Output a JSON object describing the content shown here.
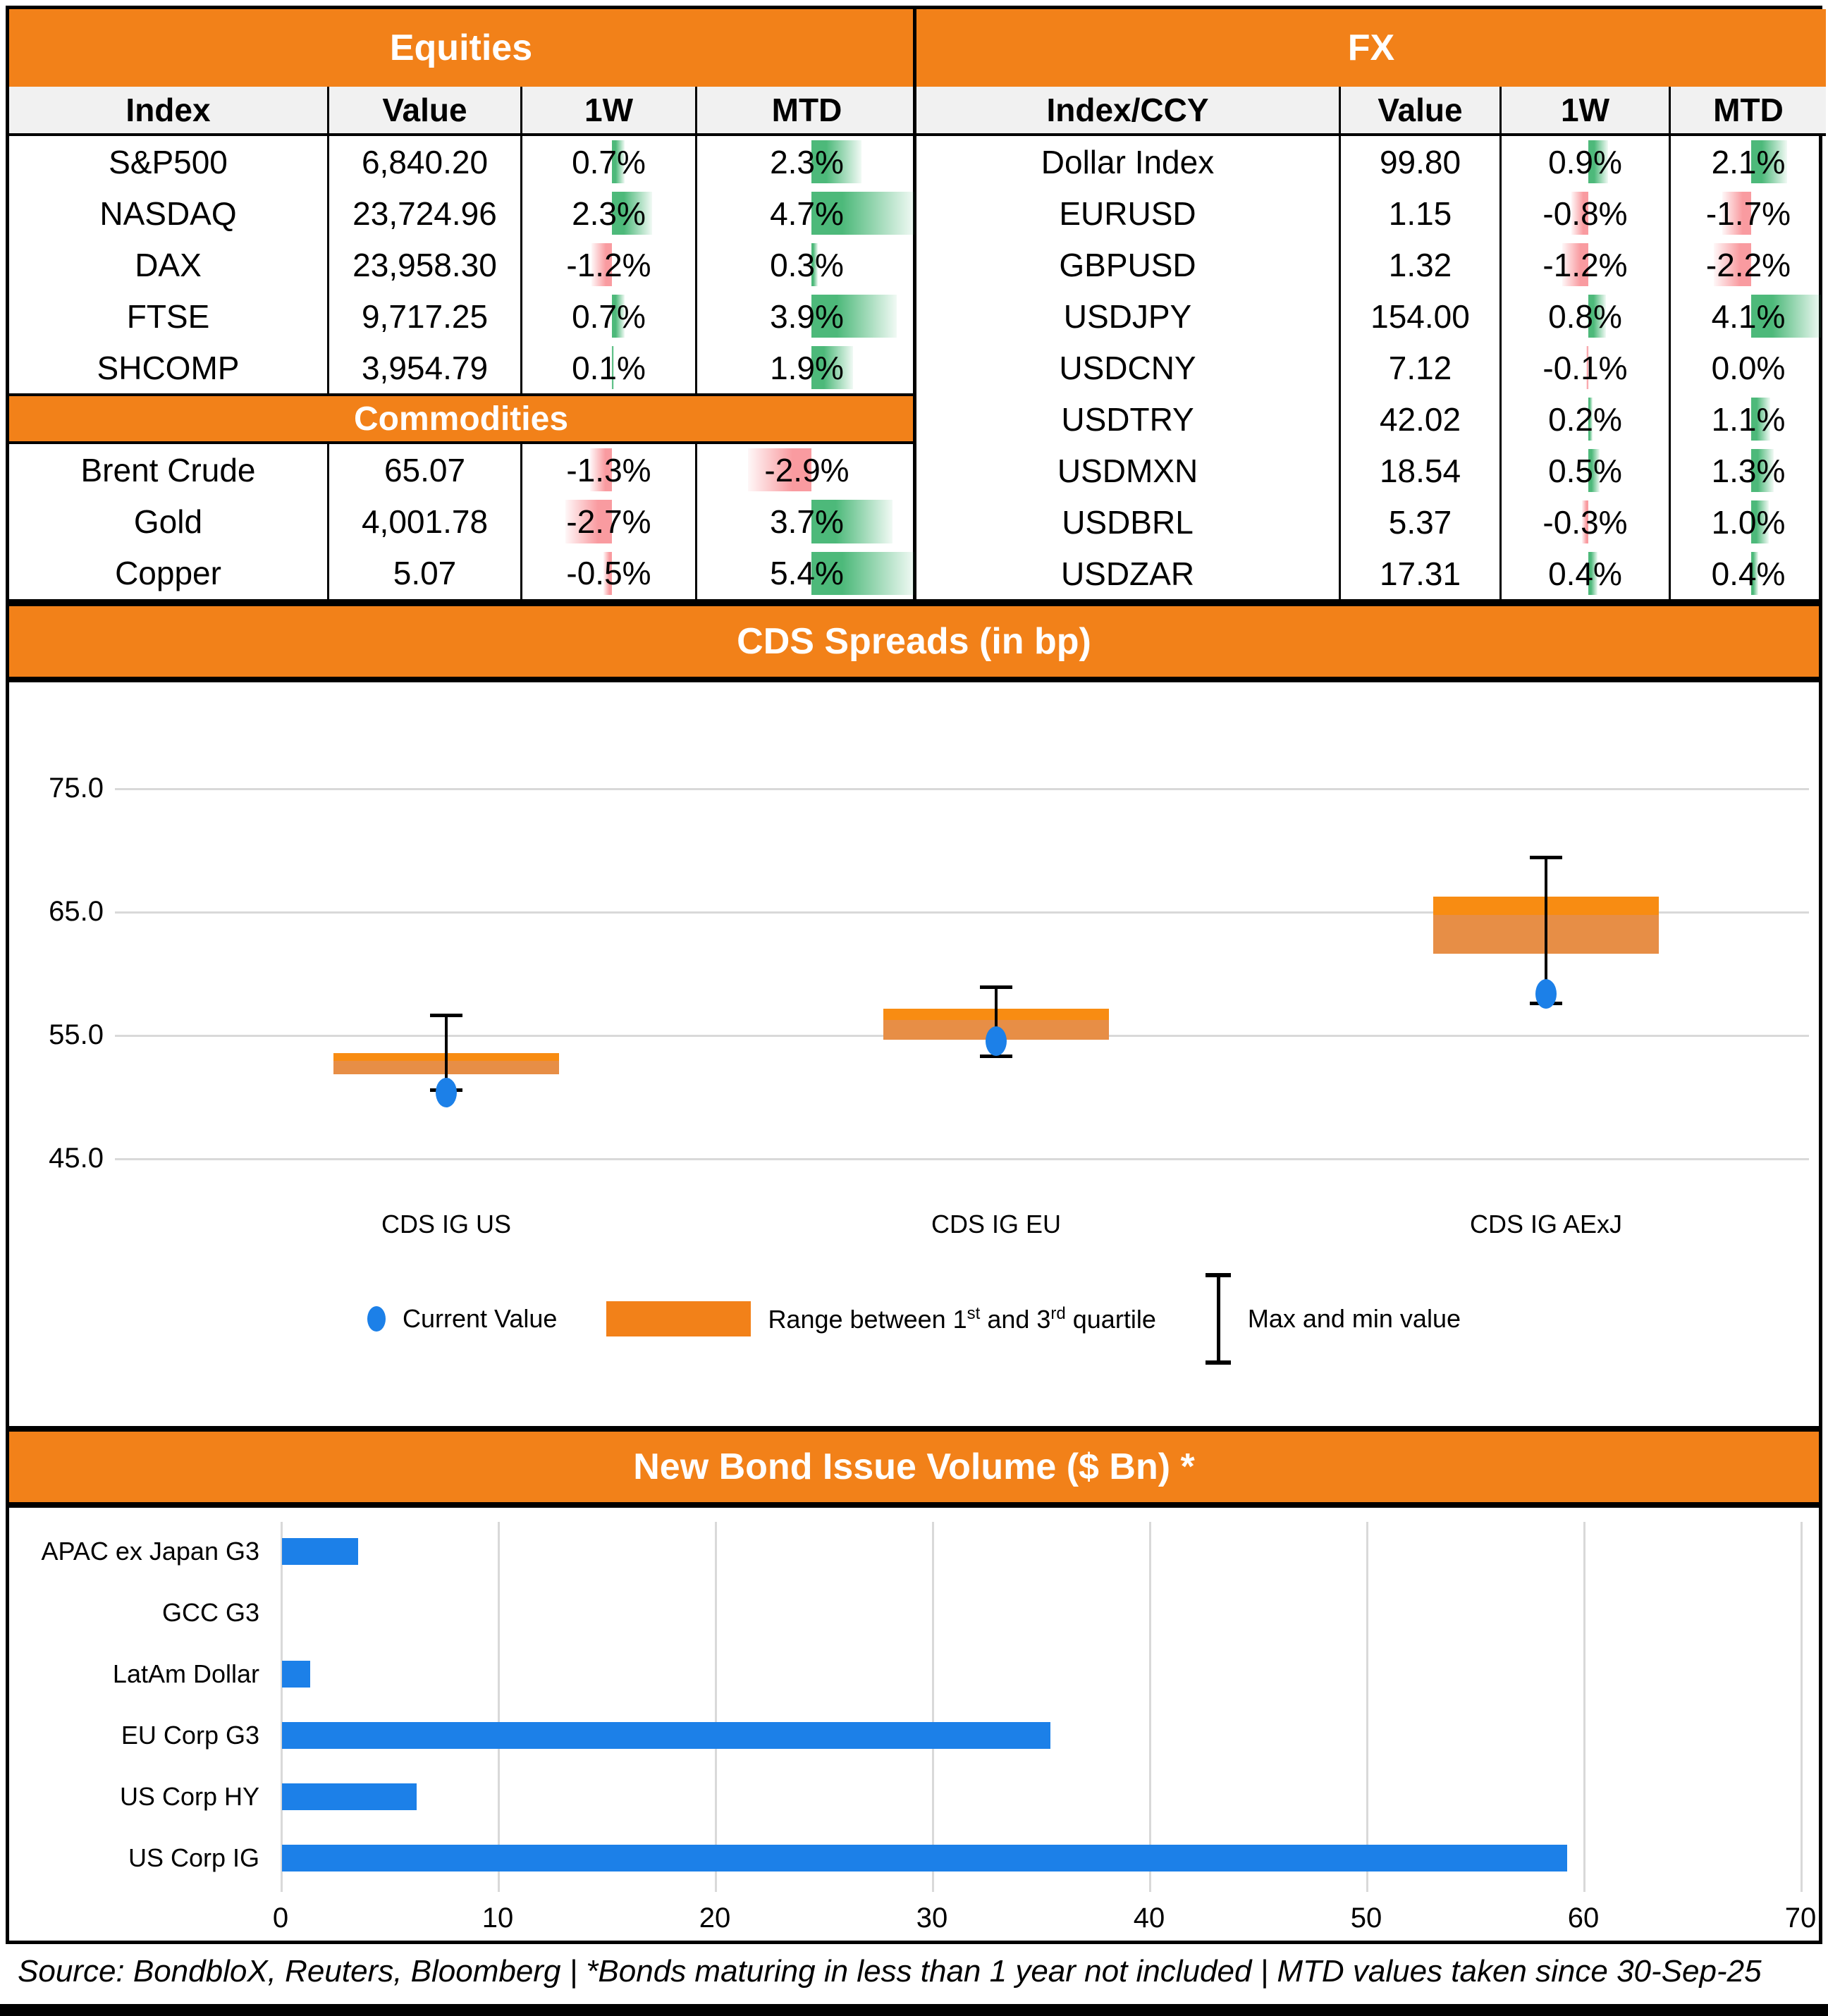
{
  "colors": {
    "accent_orange": "#F28119",
    "box_upper_orange": "#F88C12",
    "box_lower_orange": "#E78E46",
    "positive_green": "#4DB97A",
    "negative_pink": "#F99BA0",
    "blue": "#1C80E8"
  },
  "equities": {
    "title": "Equities",
    "columns": [
      "Index",
      "Value",
      "1W",
      "MTD"
    ],
    "rows": [
      {
        "name": "S&P500",
        "value": "6,840.20",
        "w1": "0.7%",
        "mtd": "2.3%"
      },
      {
        "name": "NASDAQ",
        "value": "23,724.96",
        "w1": "2.3%",
        "mtd": "4.7%"
      },
      {
        "name": "DAX",
        "value": "23,958.30",
        "w1": "-1.2%",
        "mtd": "0.3%"
      },
      {
        "name": "FTSE",
        "value": "9,717.25",
        "w1": "0.7%",
        "mtd": "3.9%"
      },
      {
        "name": "SHCOMP",
        "value": "3,954.79",
        "w1": "0.1%",
        "mtd": "1.9%"
      }
    ]
  },
  "commodities": {
    "title": "Commodities",
    "rows": [
      {
        "name": "Brent Crude",
        "value": "65.07",
        "w1": "-1.3%",
        "mtd": "-2.9%"
      },
      {
        "name": "Gold",
        "value": "4,001.78",
        "w1": "-2.7%",
        "mtd": "3.7%"
      },
      {
        "name": "Copper",
        "value": "5.07",
        "w1": "-0.5%",
        "mtd": "5.4%"
      }
    ]
  },
  "fx": {
    "title": "FX",
    "columns": [
      "Index/CCY",
      "Value",
      "1W",
      "MTD"
    ],
    "rows": [
      {
        "name": "Dollar Index",
        "value": "99.80",
        "w1": "0.9%",
        "mtd": "2.1%"
      },
      {
        "name": "EURUSD",
        "value": "1.15",
        "w1": "-0.8%",
        "mtd": "-1.7%"
      },
      {
        "name": "GBPUSD",
        "value": "1.32",
        "w1": "-1.2%",
        "mtd": "-2.2%"
      },
      {
        "name": "USDJPY",
        "value": "154.00",
        "w1": "0.8%",
        "mtd": "4.1%"
      },
      {
        "name": "USDCNY",
        "value": "7.12",
        "w1": "-0.1%",
        "mtd": "0.0%"
      },
      {
        "name": "USDTRY",
        "value": "42.02",
        "w1": "0.2%",
        "mtd": "1.1%"
      },
      {
        "name": "USDMXN",
        "value": "18.54",
        "w1": "0.5%",
        "mtd": "1.3%"
      },
      {
        "name": "USDBRL",
        "value": "5.37",
        "w1": "-0.3%",
        "mtd": "1.0%"
      },
      {
        "name": "USDZAR",
        "value": "17.31",
        "w1": "0.4%",
        "mtd": "0.4%"
      }
    ]
  },
  "cds": {
    "title": "CDS Spreads (in bp)",
    "legend": {
      "current": "Current Value",
      "range_p1": "Range between 1",
      "range_sup1": "st",
      "range_p2": " and 3",
      "range_sup2": "rd",
      "range_p3": " quartile",
      "maxmin": "Max and min value"
    }
  },
  "bond": {
    "title": "New Bond Issue Volume ($ Bn) *"
  },
  "footer": "Source: BondbloX, Reuters, Bloomberg | *Bonds maturing in less than 1 year not included | MTD values taken since 30-Sep-25",
  "chart_data": [
    {
      "type": "boxplot",
      "title": "CDS Spreads (in bp)",
      "categories": [
        "CDS IG US",
        "CDS IG EU",
        "CDS IG AExJ"
      ],
      "series": [
        {
          "name": "CDS IG US",
          "min": 50.4,
          "q1": 51.8,
          "median": 52.9,
          "q3": 53.5,
          "max": 56.7,
          "current": 50.3
        },
        {
          "name": "CDS IG EU",
          "min": 53.1,
          "q1": 54.6,
          "median": 56.2,
          "q3": 57.1,
          "max": 59.0,
          "current": 54.5
        },
        {
          "name": "CDS IG AExJ",
          "min": 57.4,
          "q1": 61.6,
          "median": 64.7,
          "q3": 66.2,
          "max": 69.5,
          "current": 58.3
        }
      ],
      "yticks": [
        75.0,
        65.0,
        55.0,
        45.0
      ],
      "ytick_labels": [
        "75.0",
        "65.0",
        "55.0",
        "45.0"
      ],
      "ylim": [
        42.5,
        77.5
      ],
      "grid": true,
      "legend_position": "bottom",
      "legend": [
        "Current Value",
        "Range between 1st and 3rd quartile",
        "Max and min value"
      ]
    },
    {
      "type": "bar",
      "orientation": "horizontal",
      "title": "New Bond Issue Volume ($ Bn) *",
      "categories": [
        "APAC ex Japan G3",
        "GCC G3",
        "LatAm Dollar",
        "EU Corp G3",
        "US Corp HY",
        "US Corp IG"
      ],
      "values": [
        3.5,
        0,
        1.3,
        35.4,
        6.2,
        59.2
      ],
      "xlim": [
        0,
        70
      ],
      "xticks": [
        0,
        10,
        20,
        30,
        40,
        50,
        60,
        70
      ],
      "grid": true,
      "xlabel": "",
      "ylabel": ""
    }
  ]
}
